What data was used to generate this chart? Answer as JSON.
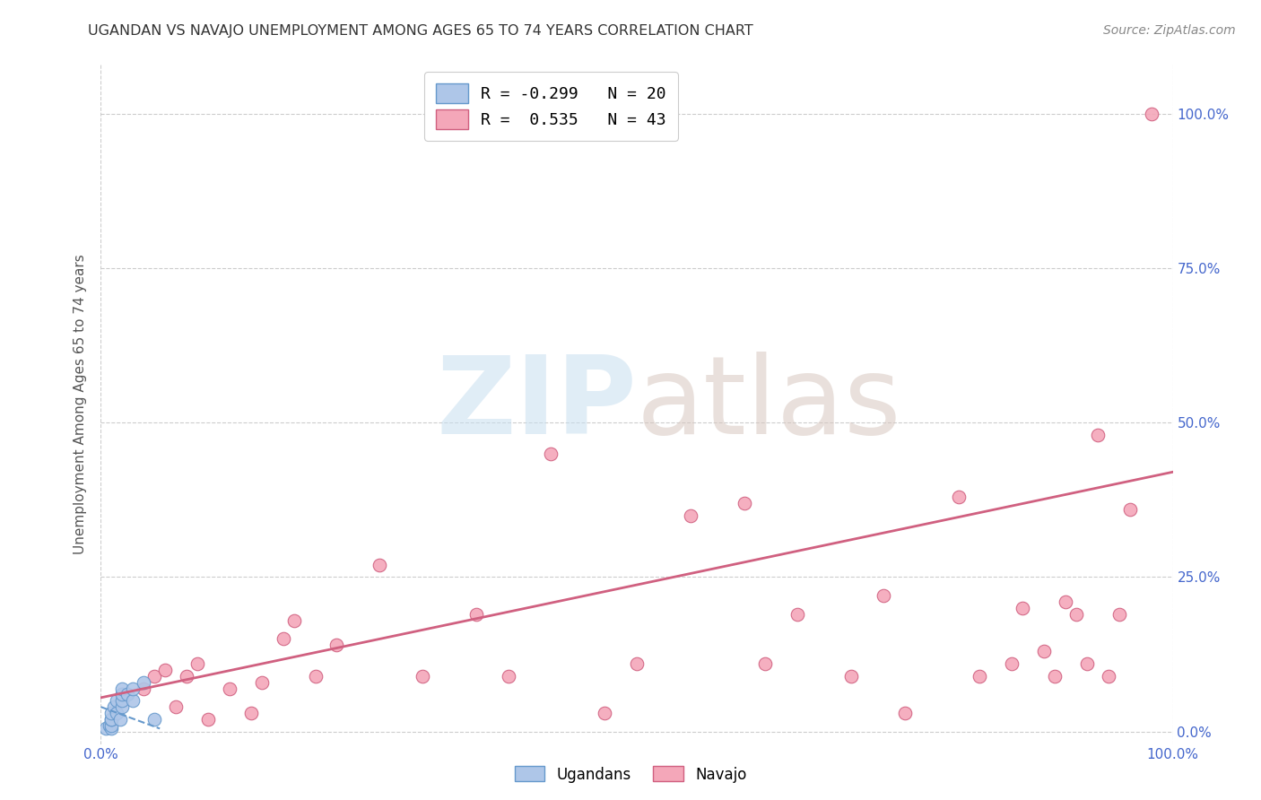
{
  "title": "UGANDAN VS NAVAJO UNEMPLOYMENT AMONG AGES 65 TO 74 YEARS CORRELATION CHART",
  "source": "Source: ZipAtlas.com",
  "ylabel": "Unemployment Among Ages 65 to 74 years",
  "xlim": [
    0,
    1
  ],
  "ylim": [
    -0.02,
    1.08
  ],
  "ytick_values": [
    0,
    0.25,
    0.5,
    0.75,
    1.0
  ],
  "xtick_values": [
    0,
    1.0
  ],
  "xtick_labels": [
    "0.0%",
    "100.0%"
  ],
  "right_ytick_labels": [
    "0.0%",
    "25.0%",
    "50.0%",
    "75.0%",
    "100.0%"
  ],
  "legend_items": [
    {
      "label": "R = -0.299   N = 20",
      "color": "#aec6e8"
    },
    {
      "label": "R =  0.535   N = 43",
      "color": "#f4a7b9"
    }
  ],
  "ugandan_scatter_x": [
    0.005,
    0.008,
    0.01,
    0.01,
    0.01,
    0.01,
    0.01,
    0.012,
    0.015,
    0.015,
    0.018,
    0.02,
    0.02,
    0.02,
    0.02,
    0.025,
    0.03,
    0.03,
    0.04,
    0.05
  ],
  "ugandan_scatter_y": [
    0.005,
    0.01,
    0.005,
    0.01,
    0.02,
    0.02,
    0.03,
    0.04,
    0.03,
    0.05,
    0.02,
    0.04,
    0.05,
    0.06,
    0.07,
    0.06,
    0.05,
    0.07,
    0.08,
    0.02
  ],
  "navajo_scatter_x": [
    0.02,
    0.04,
    0.05,
    0.06,
    0.07,
    0.08,
    0.09,
    0.1,
    0.12,
    0.14,
    0.15,
    0.17,
    0.18,
    0.2,
    0.22,
    0.26,
    0.3,
    0.35,
    0.38,
    0.42,
    0.47,
    0.5,
    0.55,
    0.6,
    0.62,
    0.65,
    0.7,
    0.73,
    0.75,
    0.8,
    0.82,
    0.85,
    0.86,
    0.88,
    0.89,
    0.9,
    0.91,
    0.92,
    0.93,
    0.94,
    0.95,
    0.96,
    0.98
  ],
  "navajo_scatter_y": [
    0.06,
    0.07,
    0.09,
    0.1,
    0.04,
    0.09,
    0.11,
    0.02,
    0.07,
    0.03,
    0.08,
    0.15,
    0.18,
    0.09,
    0.14,
    0.27,
    0.09,
    0.19,
    0.09,
    0.45,
    0.03,
    0.11,
    0.35,
    0.37,
    0.11,
    0.19,
    0.09,
    0.22,
    0.03,
    0.38,
    0.09,
    0.11,
    0.2,
    0.13,
    0.09,
    0.21,
    0.19,
    0.11,
    0.48,
    0.09,
    0.19,
    0.36,
    1.0
  ],
  "ugandan_line_x": [
    0.0,
    0.055
  ],
  "ugandan_line_y": [
    0.04,
    0.005
  ],
  "navajo_line_x": [
    0.0,
    1.0
  ],
  "navajo_line_y": [
    0.055,
    0.42
  ],
  "scatter_size": 110,
  "ugandan_color": "#aec6e8",
  "ugandan_edge_color": "#6699cc",
  "navajo_color": "#f4a7b9",
  "navajo_edge_color": "#d06080",
  "navajo_line_color": "#d06080",
  "ugandan_line_color": "#6699cc",
  "watermark_zip_color": "#c8dff0",
  "watermark_atlas_color": "#d8c8c0",
  "background_color": "#ffffff",
  "grid_color": "#cccccc",
  "title_color": "#333333",
  "source_color": "#888888",
  "tick_color": "#4466cc",
  "ylabel_color": "#555555"
}
